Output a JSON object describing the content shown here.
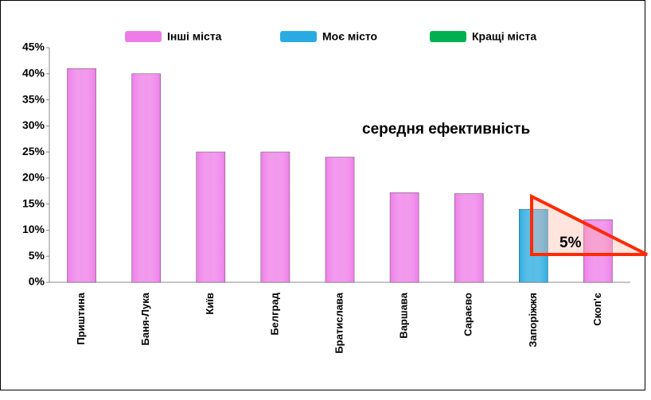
{
  "chart_data": {
    "type": "bar",
    "categories": [
      "Приштина",
      "Баня-Лука",
      "Київ",
      "Белград",
      "Братислава",
      "Варшава",
      "Сараєво",
      "Запоріжжя",
      "Скоп'є"
    ],
    "series": [
      {
        "name": "Інші міста",
        "color": "#ee7ce8",
        "values": [
          41,
          40,
          25,
          25,
          24,
          17.2,
          17,
          null,
          12
        ]
      },
      {
        "name": "Моє місто",
        "color": "#29abe2",
        "values": [
          null,
          null,
          null,
          null,
          null,
          null,
          null,
          14,
          null
        ]
      },
      {
        "name": "Кращі міста",
        "color": "#00b050",
        "values": [
          null,
          null,
          null,
          null,
          null,
          null,
          null,
          null,
          null
        ]
      }
    ],
    "ylim": [
      0,
      45
    ],
    "yticks": [
      {
        "value": 0,
        "label": "0%"
      },
      {
        "value": 5,
        "label": "5%"
      },
      {
        "value": 10,
        "label": "10%"
      },
      {
        "value": 15,
        "label": "15%"
      },
      {
        "value": 20,
        "label": "20%"
      },
      {
        "value": 25,
        "label": "25%"
      },
      {
        "value": 30,
        "label": "30%"
      },
      {
        "value": 35,
        "label": "35%"
      },
      {
        "value": 40,
        "label": "40%"
      },
      {
        "value": 45,
        "label": "45%"
      }
    ],
    "annotations": [
      "середня ефективність",
      "5%"
    ]
  }
}
